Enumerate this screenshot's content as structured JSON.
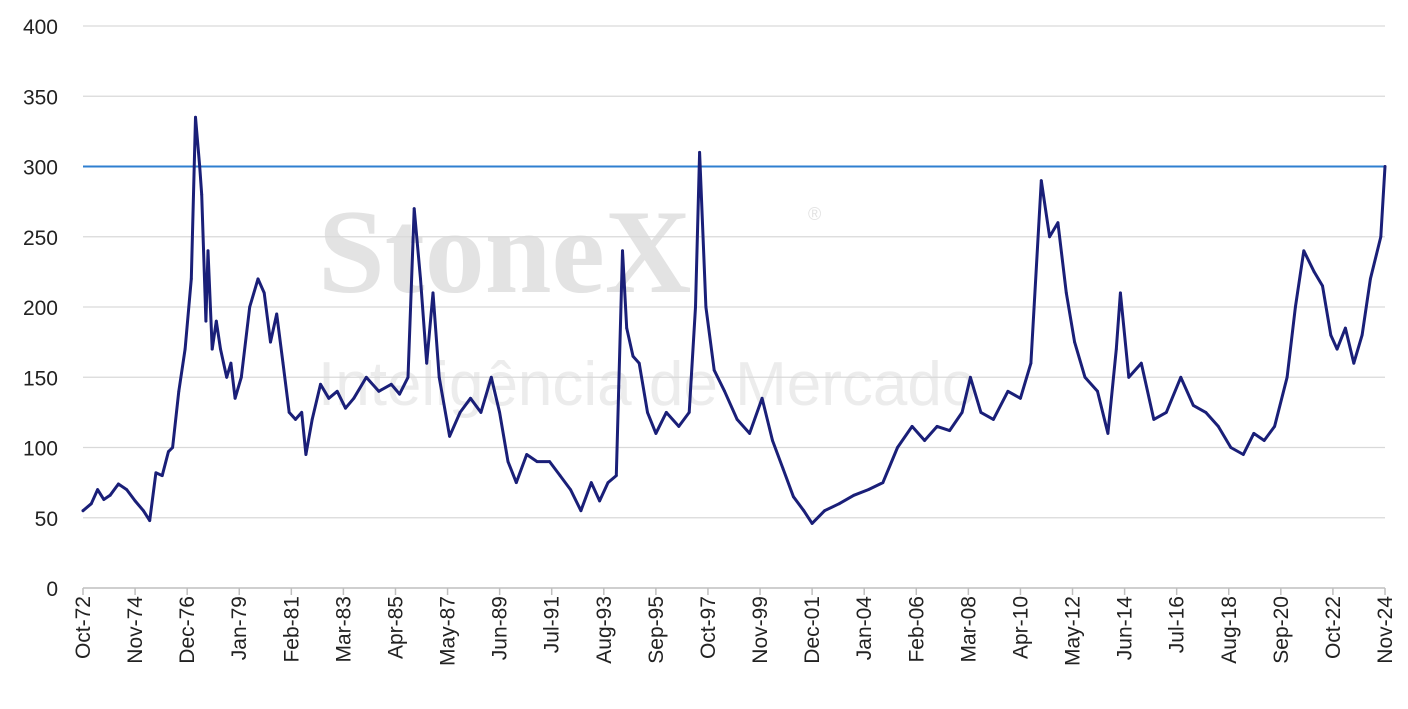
{
  "watermark": {
    "brand": "StoneX",
    "registered": "®",
    "tagline": "Inteligência de Mercado"
  },
  "chart_data": {
    "type": "line",
    "title": "",
    "xlabel": "",
    "ylabel": "",
    "ylim": [
      0,
      400
    ],
    "yticks": [
      0,
      50,
      100,
      150,
      200,
      250,
      300,
      350,
      400
    ],
    "grid": true,
    "x_range": [
      "1972-10",
      "2024-11"
    ],
    "xticks": [
      {
        "date": "1972-10",
        "label": "Oct-72"
      },
      {
        "date": "1974-11",
        "label": "Nov-74"
      },
      {
        "date": "1976-12",
        "label": "Dec-76"
      },
      {
        "date": "1979-01",
        "label": "Jan-79"
      },
      {
        "date": "1981-02",
        "label": "Feb-81"
      },
      {
        "date": "1983-03",
        "label": "Mar-83"
      },
      {
        "date": "1985-04",
        "label": "Apr-85"
      },
      {
        "date": "1987-05",
        "label": "May-87"
      },
      {
        "date": "1989-06",
        "label": "Jun-89"
      },
      {
        "date": "1991-07",
        "label": "Jul-91"
      },
      {
        "date": "1993-08",
        "label": "Aug-93"
      },
      {
        "date": "1995-09",
        "label": "Sep-95"
      },
      {
        "date": "1997-10",
        "label": "Oct-97"
      },
      {
        "date": "1999-11",
        "label": "Nov-99"
      },
      {
        "date": "2001-12",
        "label": "Dec-01"
      },
      {
        "date": "2004-01",
        "label": "Jan-04"
      },
      {
        "date": "2006-02",
        "label": "Feb-06"
      },
      {
        "date": "2008-03",
        "label": "Mar-08"
      },
      {
        "date": "2010-04",
        "label": "Apr-10"
      },
      {
        "date": "2012-05",
        "label": "May-12"
      },
      {
        "date": "2014-06",
        "label": "Jun-14"
      },
      {
        "date": "2016-07",
        "label": "Jul-16"
      },
      {
        "date": "2018-08",
        "label": "Aug-18"
      },
      {
        "date": "2020-09",
        "label": "Sep-20"
      },
      {
        "date": "2022-10",
        "label": "Oct-22"
      },
      {
        "date": "2024-11",
        "label": "Nov-24"
      }
    ],
    "reference_line": {
      "y": 300,
      "color": "#2f7fd0"
    },
    "series": [
      {
        "color": "#1a1f78",
        "points": [
          [
            "1972-10",
            55
          ],
          [
            "1973-02",
            60
          ],
          [
            "1973-05",
            70
          ],
          [
            "1973-08",
            63
          ],
          [
            "1973-11",
            66
          ],
          [
            "1974-03",
            74
          ],
          [
            "1974-07",
            70
          ],
          [
            "1974-11",
            62
          ],
          [
            "1975-03",
            55
          ],
          [
            "1975-06",
            48
          ],
          [
            "1975-09",
            82
          ],
          [
            "1975-12",
            80
          ],
          [
            "1976-03",
            97
          ],
          [
            "1976-05",
            100
          ],
          [
            "1976-08",
            140
          ],
          [
            "1976-11",
            170
          ],
          [
            "1977-02",
            220
          ],
          [
            "1977-04",
            335
          ],
          [
            "1977-06",
            300
          ],
          [
            "1977-07",
            280
          ],
          [
            "1977-09",
            190
          ],
          [
            "1977-10",
            240
          ],
          [
            "1977-12",
            170
          ],
          [
            "1978-02",
            190
          ],
          [
            "1978-04",
            170
          ],
          [
            "1978-07",
            150
          ],
          [
            "1978-09",
            160
          ],
          [
            "1978-11",
            135
          ],
          [
            "1979-02",
            150
          ],
          [
            "1979-06",
            200
          ],
          [
            "1979-10",
            220
          ],
          [
            "1980-01",
            210
          ],
          [
            "1980-04",
            175
          ],
          [
            "1980-07",
            195
          ],
          [
            "1980-10",
            160
          ],
          [
            "1981-01",
            125
          ],
          [
            "1981-04",
            120
          ],
          [
            "1981-07",
            125
          ],
          [
            "1981-09",
            95
          ],
          [
            "1981-12",
            120
          ],
          [
            "1982-04",
            145
          ],
          [
            "1982-08",
            135
          ],
          [
            "1982-12",
            140
          ],
          [
            "1983-04",
            128
          ],
          [
            "1983-08",
            135
          ],
          [
            "1984-02",
            150
          ],
          [
            "1984-08",
            140
          ],
          [
            "1985-02",
            145
          ],
          [
            "1985-06",
            138
          ],
          [
            "1985-10",
            150
          ],
          [
            "1986-01",
            270
          ],
          [
            "1986-04",
            220
          ],
          [
            "1986-07",
            160
          ],
          [
            "1986-10",
            210
          ],
          [
            "1987-01",
            150
          ],
          [
            "1987-06",
            108
          ],
          [
            "1987-11",
            125
          ],
          [
            "1988-04",
            135
          ],
          [
            "1988-09",
            125
          ],
          [
            "1989-02",
            150
          ],
          [
            "1989-06",
            125
          ],
          [
            "1989-10",
            90
          ],
          [
            "1990-02",
            75
          ],
          [
            "1990-07",
            95
          ],
          [
            "1990-12",
            90
          ],
          [
            "1991-06",
            90
          ],
          [
            "1991-11",
            80
          ],
          [
            "1992-04",
            70
          ],
          [
            "1992-09",
            55
          ],
          [
            "1993-02",
            75
          ],
          [
            "1993-06",
            62
          ],
          [
            "1993-10",
            75
          ],
          [
            "1994-02",
            80
          ],
          [
            "1994-05",
            240
          ],
          [
            "1994-07",
            185
          ],
          [
            "1994-10",
            165
          ],
          [
            "1995-01",
            160
          ],
          [
            "1995-05",
            125
          ],
          [
            "1995-09",
            110
          ],
          [
            "1996-02",
            125
          ],
          [
            "1996-08",
            115
          ],
          [
            "1997-01",
            125
          ],
          [
            "1997-04",
            200
          ],
          [
            "1997-06",
            310
          ],
          [
            "1997-09",
            200
          ],
          [
            "1998-01",
            155
          ],
          [
            "1998-06",
            140
          ],
          [
            "1998-12",
            120
          ],
          [
            "1999-06",
            110
          ],
          [
            "1999-12",
            135
          ],
          [
            "2000-05",
            105
          ],
          [
            "2000-10",
            85
          ],
          [
            "2001-03",
            65
          ],
          [
            "2001-08",
            55
          ],
          [
            "2001-12",
            46
          ],
          [
            "2002-06",
            55
          ],
          [
            "2003-01",
            60
          ],
          [
            "2003-08",
            66
          ],
          [
            "2004-03",
            70
          ],
          [
            "2004-10",
            75
          ],
          [
            "2005-05",
            100
          ],
          [
            "2005-12",
            115
          ],
          [
            "2006-06",
            105
          ],
          [
            "2006-12",
            115
          ],
          [
            "2007-06",
            112
          ],
          [
            "2007-12",
            125
          ],
          [
            "2008-04",
            150
          ],
          [
            "2008-09",
            125
          ],
          [
            "2009-03",
            120
          ],
          [
            "2009-10",
            140
          ],
          [
            "2010-04",
            135
          ],
          [
            "2010-09",
            160
          ],
          [
            "2011-02",
            290
          ],
          [
            "2011-06",
            250
          ],
          [
            "2011-10",
            260
          ],
          [
            "2012-02",
            210
          ],
          [
            "2012-06",
            175
          ],
          [
            "2012-11",
            150
          ],
          [
            "2013-05",
            140
          ],
          [
            "2013-10",
            110
          ],
          [
            "2014-02",
            170
          ],
          [
            "2014-04",
            210
          ],
          [
            "2014-08",
            150
          ],
          [
            "2015-02",
            160
          ],
          [
            "2015-08",
            120
          ],
          [
            "2016-02",
            125
          ],
          [
            "2016-09",
            150
          ],
          [
            "2017-03",
            130
          ],
          [
            "2017-09",
            125
          ],
          [
            "2018-03",
            115
          ],
          [
            "2018-09",
            100
          ],
          [
            "2019-03",
            95
          ],
          [
            "2019-08",
            110
          ],
          [
            "2020-01",
            105
          ],
          [
            "2020-06",
            115
          ],
          [
            "2020-12",
            150
          ],
          [
            "2021-04",
            200
          ],
          [
            "2021-08",
            240
          ],
          [
            "2022-01",
            225
          ],
          [
            "2022-05",
            215
          ],
          [
            "2022-09",
            180
          ],
          [
            "2022-12",
            170
          ],
          [
            "2023-04",
            185
          ],
          [
            "2023-08",
            160
          ],
          [
            "2023-12",
            180
          ],
          [
            "2024-04",
            220
          ],
          [
            "2024-09",
            250
          ],
          [
            "2024-11",
            300
          ]
        ]
      }
    ]
  }
}
